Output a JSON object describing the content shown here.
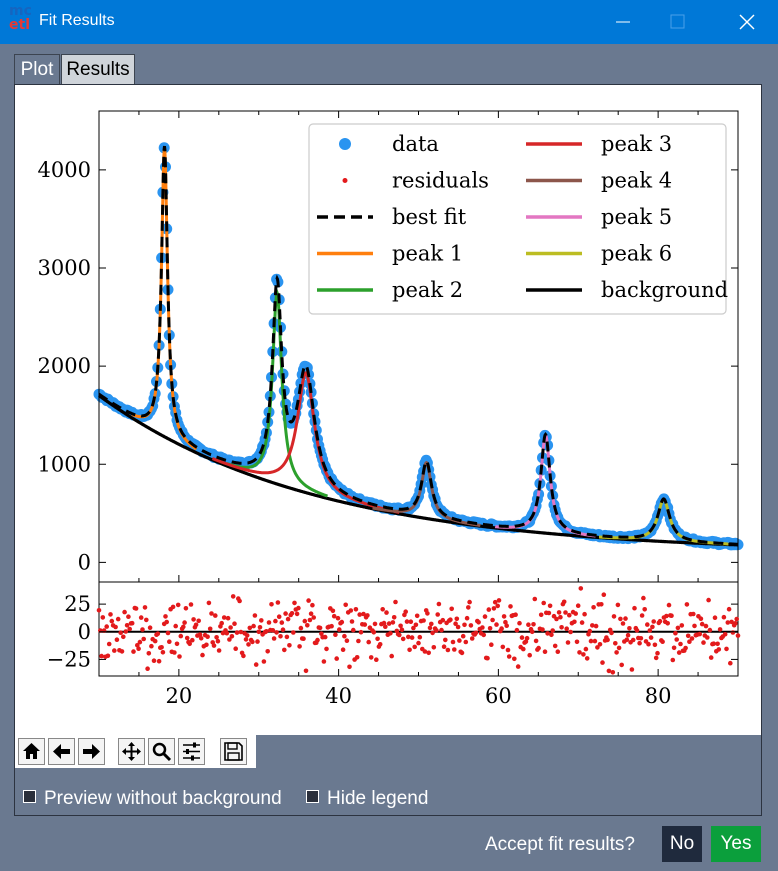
{
  "window": {
    "title": "Fit Results",
    "logo_top": "mc",
    "logo_bottom": "etl"
  },
  "tabs": [
    {
      "label": "Plot",
      "active": true
    },
    {
      "label": "Results",
      "active": false
    }
  ],
  "toolbar": {
    "buttons": [
      "home-icon",
      "back-icon",
      "forward-icon",
      "pan-icon",
      "zoom-icon",
      "configure-icon",
      "save-icon"
    ]
  },
  "options": {
    "preview_label": "Preview without background",
    "hide_legend_label": "Hide legend"
  },
  "footer": {
    "prompt": "Accept fit results?",
    "no_label": "No",
    "yes_label": "Yes"
  },
  "colors": {
    "data": "#2a94f0",
    "residuals": "#e31a1c",
    "fit": "#000000",
    "peak1": "#ff7f0e",
    "peak2": "#2ca02c",
    "peak3": "#d62728",
    "peak4": "#8c564b",
    "peak5": "#e377c2",
    "peak6": "#bcbd22",
    "background": "#000000",
    "titlebar": "#0078d7"
  },
  "chart_data": [
    {
      "type": "line",
      "panel": "main",
      "xlim": [
        10,
        90
      ],
      "ylim": [
        -200,
        4600
      ],
      "yticks": [
        0,
        1000,
        2000,
        3000,
        4000
      ],
      "background": {
        "a": 95,
        "b": 1700,
        "c": 0.23
      },
      "peaks": [
        {
          "name": "peak 1",
          "center": 18.2,
          "height": 2950,
          "width": 0.45
        },
        {
          "name": "peak 2",
          "center": 32.3,
          "height": 1950,
          "width": 0.7
        },
        {
          "name": "peak 3",
          "center": 35.9,
          "height": 1220,
          "width": 1.3
        },
        {
          "name": "peak 4",
          "center": 51.0,
          "height": 570,
          "width": 0.75
        },
        {
          "name": "peak 5",
          "center": 65.9,
          "height": 1000,
          "width": 0.7
        },
        {
          "name": "peak 6",
          "center": 80.7,
          "height": 430,
          "width": 0.9
        }
      ],
      "legend": {
        "placement": "upper-right",
        "entries": [
          "data",
          "residuals",
          "best fit",
          "peak 1",
          "peak 2",
          "peak 3",
          "peak 4",
          "peak 5",
          "peak 6",
          "background"
        ]
      }
    },
    {
      "type": "scatter",
      "panel": "residuals",
      "xlim": [
        10,
        90
      ],
      "ylim": [
        -40,
        45
      ],
      "yticks": [
        -25,
        0,
        25
      ],
      "xticks": [
        20,
        40,
        60,
        80
      ],
      "spread": 14
    }
  ]
}
